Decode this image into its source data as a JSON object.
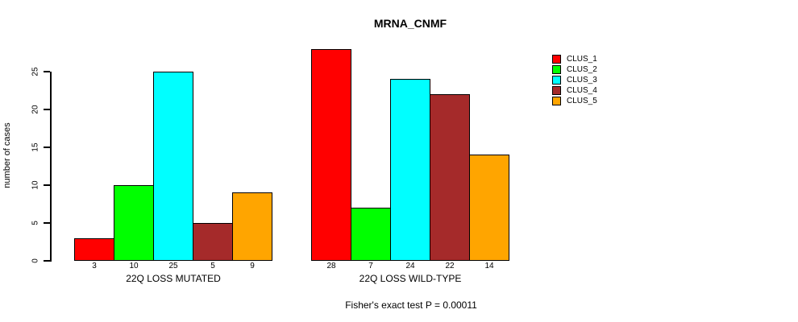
{
  "chart_data": {
    "type": "bar",
    "title": "MRNA_CNMF",
    "ylabel": "number of cases",
    "xlabel": "",
    "yticks": [
      0,
      5,
      10,
      15,
      20,
      25
    ],
    "ylim": [
      0,
      28.5
    ],
    "grid": false,
    "legend_position": "right",
    "series_names": [
      "CLUS_1",
      "CLUS_2",
      "CLUS_3",
      "CLUS_4",
      "CLUS_5"
    ],
    "series_colors": [
      "#FF0000",
      "#00FF00",
      "#00FFFF",
      "#A52A2A",
      "#FFA500"
    ],
    "groups": [
      {
        "label": "22Q LOSS MUTATED",
        "values": [
          3,
          10,
          25,
          5,
          9
        ]
      },
      {
        "label": "22Q LOSS WILD-TYPE",
        "values": [
          28,
          7,
          24,
          22,
          14
        ]
      }
    ],
    "bar_value_labels_shown": true,
    "annotation": "Fisher's exact test P = 0.00011",
    "text_color": "#000000",
    "background_color": "#FFFFFF"
  }
}
